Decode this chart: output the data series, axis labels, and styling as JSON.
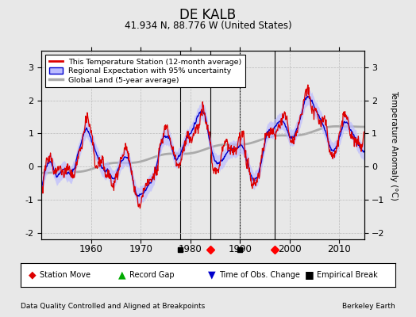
{
  "title": "DE KALB",
  "subtitle": "41.934 N, 88.776 W (United States)",
  "ylabel": "Temperature Anomaly (°C)",
  "footer_left": "Data Quality Controlled and Aligned at Breakpoints",
  "footer_right": "Berkeley Earth",
  "xlim": [
    1950,
    2015
  ],
  "ylim": [
    -2.2,
    3.5
  ],
  "yticks": [
    -2,
    -1,
    0,
    1,
    2,
    3
  ],
  "xticks": [
    1960,
    1970,
    1980,
    1990,
    2000,
    2010
  ],
  "bg_color": "#e8e8e8",
  "plot_bg_color": "#e8e8e8",
  "line_station_color": "#dd0000",
  "line_regional_color": "#0000cc",
  "line_global_color": "#aaaaaa",
  "uncertainty_color": "#bbbbff",
  "legend_labels": [
    "This Temperature Station (12-month average)",
    "Regional Expectation with 95% uncertainty",
    "Global Land (5-year average)"
  ],
  "event_markers": {
    "empirical_break": [
      1978,
      1990
    ],
    "station_move": [
      1984,
      1997
    ],
    "time_obs_change": []
  },
  "seed": 12345
}
